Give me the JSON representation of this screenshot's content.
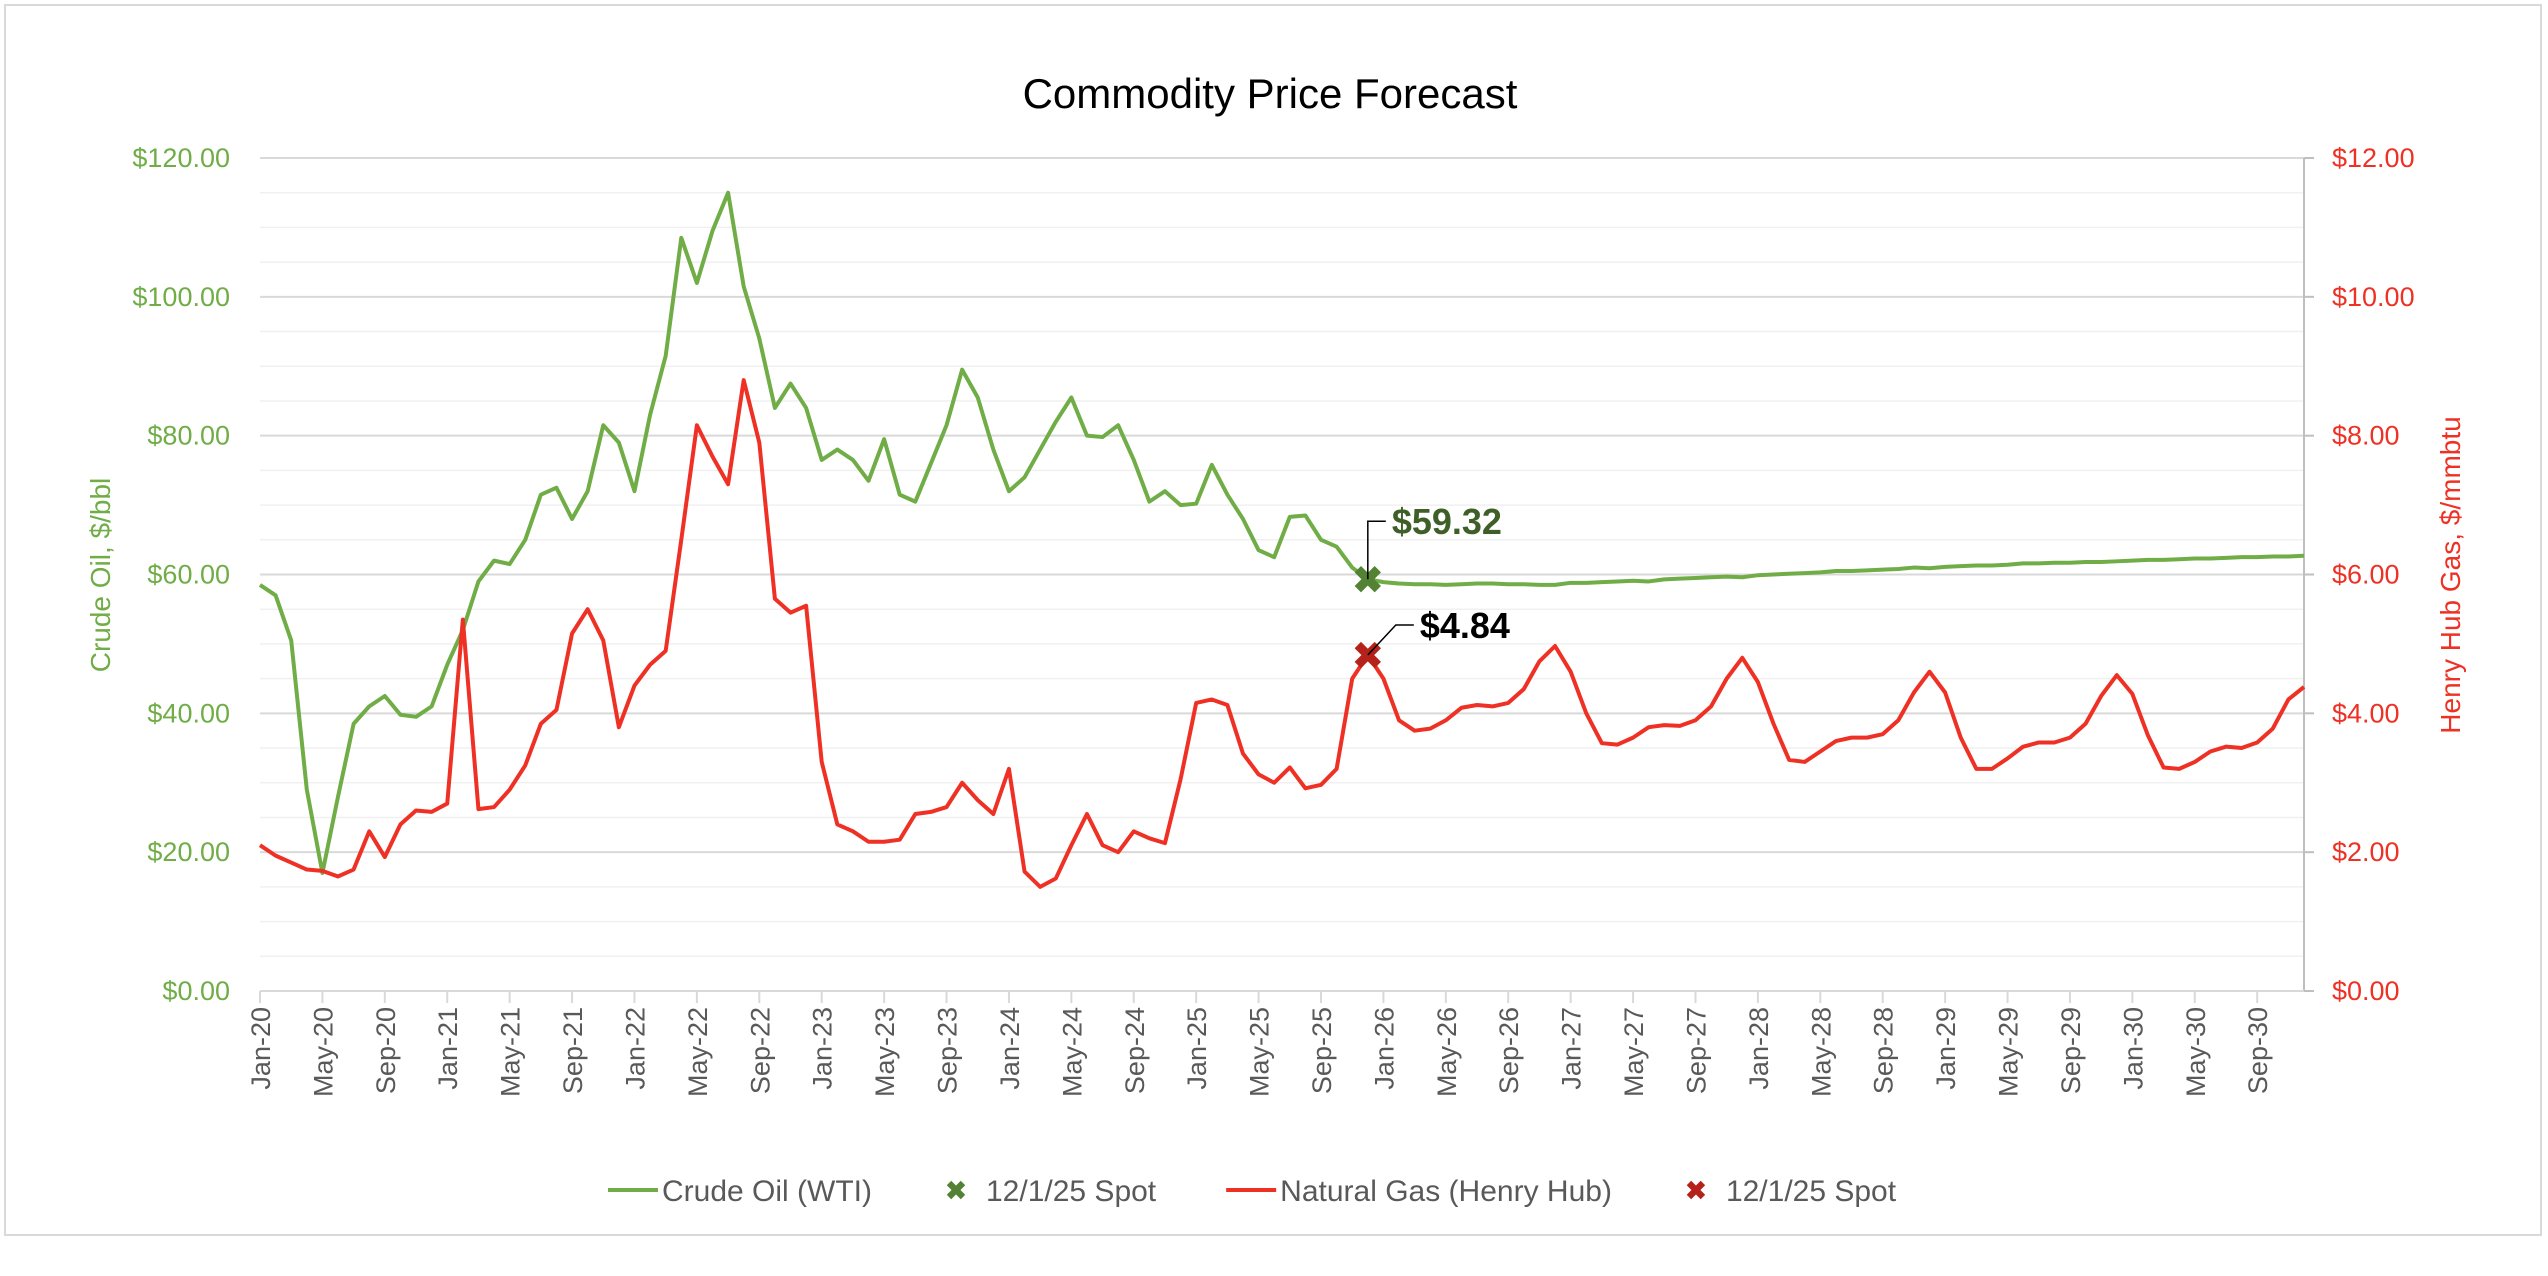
{
  "chart_data": {
    "type": "line",
    "title": "Commodity Price Forecast",
    "x_start": "Jan-20",
    "x_end": "Dec-30",
    "x_frequency": "monthly",
    "x_tick_labels": [
      "Jan-20",
      "May-20",
      "Sep-20",
      "Jan-21",
      "May-21",
      "Sep-21",
      "Jan-22",
      "May-22",
      "Sep-22",
      "Jan-23",
      "May-23",
      "Sep-23",
      "Jan-24",
      "May-24",
      "Sep-24",
      "Jan-25",
      "May-25",
      "Sep-25",
      "Jan-26",
      "May-26",
      "Sep-26",
      "Jan-27",
      "May-27",
      "Sep-27",
      "Jan-28",
      "May-28",
      "Sep-28",
      "Jan-29",
      "May-29",
      "Sep-29",
      "Jan-30",
      "May-30",
      "Sep-30"
    ],
    "y_left": {
      "label": "Crude Oil, $/bbl",
      "range": [
        0,
        120
      ],
      "major_step": 20,
      "minor_step": 5,
      "tick_labels": [
        "$0.00",
        "$20.00",
        "$40.00",
        "$60.00",
        "$80.00",
        "$100.00",
        "$120.00"
      ]
    },
    "y_right": {
      "label": "Henry Hub Gas, $/mmbtu",
      "range": [
        0,
        12
      ],
      "major_step": 2,
      "tick_labels": [
        "$0.00",
        "$2.00",
        "$4.00",
        "$6.00",
        "$8.00",
        "$10.00",
        "$12.00"
      ]
    },
    "grid": true,
    "legend_position": "bottom",
    "series": [
      {
        "name": "Crude Oil (WTI)",
        "axis": "left",
        "color": "#70ad47",
        "values": [
          58.5,
          57,
          50.5,
          29,
          17,
          28,
          38.5,
          41,
          42.5,
          39.8,
          39.5,
          41,
          47,
          52,
          59,
          62,
          61.5,
          65,
          71.5,
          72.5,
          68,
          72,
          81.5,
          79,
          72,
          83,
          91.5,
          108.5,
          102,
          109.5,
          115,
          101.5,
          94,
          84,
          87.5,
          84,
          76.5,
          78,
          76.5,
          73.5,
          79.5,
          71.5,
          70.5,
          76,
          81.5,
          89.5,
          85.5,
          78,
          72,
          74,
          78,
          82,
          85.5,
          80,
          79.8,
          81.5,
          76.5,
          70.5,
          72,
          70,
          70.2,
          75.8,
          71.5,
          68,
          63.5,
          62.5,
          68.3,
          68.5,
          65,
          64,
          61,
          59.32,
          58.9,
          58.7,
          58.6,
          58.6,
          58.5,
          58.6,
          58.7,
          58.7,
          58.6,
          58.6,
          58.5,
          58.5,
          58.8,
          58.8,
          58.9,
          59.0,
          59.1,
          59.0,
          59.3,
          59.4,
          59.5,
          59.6,
          59.7,
          59.6,
          59.9,
          60.0,
          60.1,
          60.2,
          60.3,
          60.5,
          60.5,
          60.6,
          60.7,
          60.8,
          61.0,
          60.9,
          61.1,
          61.2,
          61.3,
          61.3,
          61.4,
          61.6,
          61.6,
          61.7,
          61.7,
          61.8,
          61.8,
          61.9,
          62.0,
          62.1,
          62.1,
          62.2,
          62.3,
          62.3,
          62.4,
          62.5,
          62.5,
          62.6,
          62.6,
          62.7
        ]
      },
      {
        "name": "12/1/25 Spot",
        "axis": "left",
        "color": "#548235",
        "marker": "x",
        "x": "Dec-25",
        "value": 59.32,
        "label": "$59.32",
        "label_color": "#3f5f28"
      },
      {
        "name": "Natural Gas (Henry Hub)",
        "axis": "right",
        "color": "#ee3124",
        "values": [
          2.1,
          1.95,
          1.85,
          1.75,
          1.73,
          1.65,
          1.75,
          2.3,
          1.93,
          2.4,
          2.6,
          2.58,
          2.7,
          5.35,
          2.62,
          2.65,
          2.9,
          3.25,
          3.85,
          4.05,
          5.15,
          5.5,
          5.05,
          3.8,
          4.4,
          4.7,
          4.9,
          6.5,
          8.15,
          7.7,
          7.3,
          8.8,
          7.9,
          5.65,
          5.45,
          5.55,
          3.3,
          2.4,
          2.3,
          2.15,
          2.15,
          2.18,
          2.55,
          2.58,
          2.65,
          3.0,
          2.75,
          2.55,
          3.2,
          1.72,
          1.5,
          1.62,
          2.1,
          2.55,
          2.1,
          2.0,
          2.3,
          2.2,
          2.13,
          3.05,
          4.15,
          4.2,
          4.12,
          3.42,
          3.12,
          3.0,
          3.22,
          2.92,
          2.97,
          3.2,
          4.5,
          4.84,
          4.5,
          3.9,
          3.75,
          3.78,
          3.9,
          4.08,
          4.12,
          4.1,
          4.15,
          4.35,
          4.75,
          4.97,
          4.6,
          4.0,
          3.57,
          3.55,
          3.65,
          3.8,
          3.83,
          3.82,
          3.9,
          4.1,
          4.5,
          4.8,
          4.45,
          3.85,
          3.33,
          3.3,
          3.45,
          3.6,
          3.65,
          3.65,
          3.7,
          3.9,
          4.3,
          4.6,
          4.3,
          3.65,
          3.2,
          3.2,
          3.35,
          3.52,
          3.58,
          3.58,
          3.65,
          3.85,
          4.25,
          4.55,
          4.28,
          3.68,
          3.22,
          3.2,
          3.3,
          3.45,
          3.52,
          3.5,
          3.58,
          3.78,
          4.2,
          4.38
        ]
      },
      {
        "name": "12/1/25 Spot",
        "axis": "right",
        "color": "#b5221a",
        "marker": "x",
        "x": "Dec-25",
        "value": 4.84,
        "label": "$4.84",
        "label_color": "#000000"
      }
    ]
  }
}
